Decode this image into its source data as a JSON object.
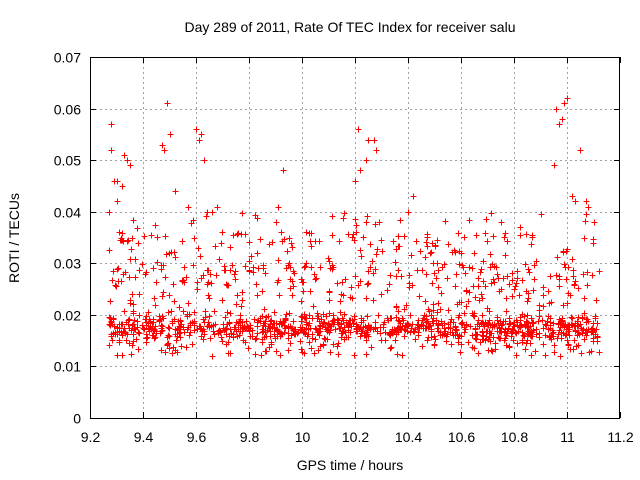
{
  "chart_data": {
    "type": "scatter",
    "title": "Day 289 of 2011, Rate Of TEC Index for receiver salu",
    "xlabel": "GPS time / hours",
    "ylabel": "ROTI / TECUs",
    "xlim": [
      9.2,
      11.2
    ],
    "ylim": [
      0,
      0.07
    ],
    "xticks": [
      9.2,
      9.4,
      9.6,
      9.8,
      10.0,
      10.2,
      10.4,
      10.6,
      10.8,
      11.0,
      11.2
    ],
    "xtick_labels": [
      "9.2",
      "9.4",
      "9.6",
      "9.8",
      "10",
      "10.2",
      "10.4",
      "10.6",
      "10.8",
      "11",
      "11.2"
    ],
    "yticks": [
      0,
      0.01,
      0.02,
      0.03,
      0.04,
      0.05,
      0.06,
      0.07
    ],
    "ytick_labels": [
      "0",
      "0.01",
      "0.02",
      "0.03",
      "0.04",
      "0.05",
      "0.06",
      "0.07"
    ],
    "grid": true,
    "marker": "plus",
    "color": "#ff0000",
    "x_range": [
      9.27,
      11.12
    ],
    "num_points": 1500,
    "series": [
      {
        "x": [
          9.27,
          9.28,
          9.28,
          9.29,
          9.3,
          9.3,
          9.32,
          9.33,
          9.34,
          9.35,
          9.36,
          9.38,
          9.47,
          9.48,
          9.49,
          9.5,
          9.52,
          9.57,
          9.6,
          9.61,
          9.62,
          9.63,
          9.64,
          9.66,
          9.68,
          9.9,
          9.91,
          9.92,
          9.93,
          9.95,
          9.96,
          10.2,
          10.21,
          10.22,
          10.24,
          10.25,
          10.27,
          10.28,
          10.29,
          10.4,
          10.42,
          10.6,
          10.65,
          10.75,
          10.95,
          10.96,
          10.97,
          10.98,
          10.99,
          11.0,
          11.02,
          11.03,
          11.05,
          11.07,
          11.08,
          11.1
        ],
        "y": [
          0.04,
          0.052,
          0.057,
          0.046,
          0.046,
          0.042,
          0.045,
          0.051,
          0.05,
          0.049,
          0.035,
          0.034,
          0.053,
          0.052,
          0.061,
          0.055,
          0.044,
          0.041,
          0.056,
          0.054,
          0.055,
          0.05,
          0.04,
          0.04,
          0.041,
          0.038,
          0.041,
          0.036,
          0.048,
          0.035,
          0.034,
          0.046,
          0.056,
          0.048,
          0.05,
          0.054,
          0.054,
          0.052,
          0.038,
          0.04,
          0.043,
          0.032,
          0.032,
          0.038,
          0.049,
          0.06,
          0.057,
          0.058,
          0.061,
          0.062,
          0.043,
          0.042,
          0.052,
          0.042,
          0.041,
          0.038
        ]
      }
    ]
  }
}
